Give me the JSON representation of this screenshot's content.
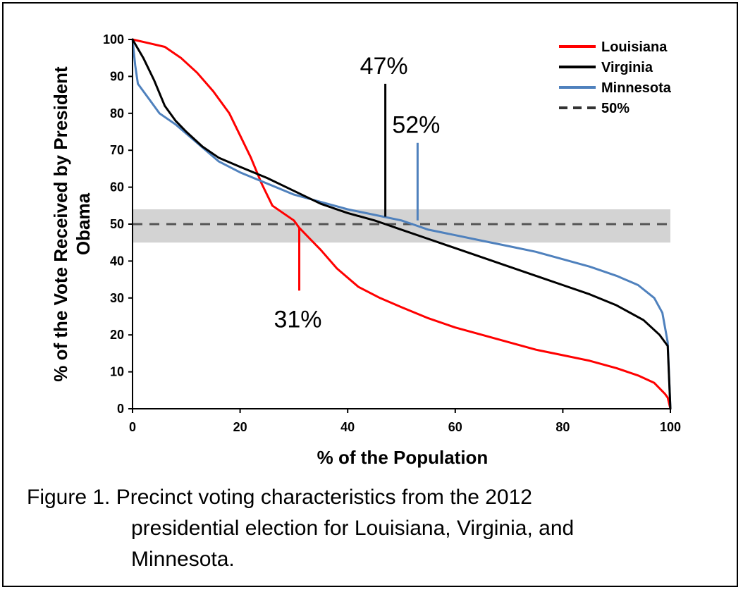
{
  "chart_data": {
    "type": "line",
    "title": "",
    "xlabel": "% of the Population",
    "ylabel": "% of the Vote Received by President Obama",
    "xlim": [
      0,
      100
    ],
    "ylim": [
      0,
      100
    ],
    "xticks": [
      0,
      20,
      40,
      60,
      80,
      100
    ],
    "yticks": [
      0,
      10,
      20,
      30,
      40,
      50,
      60,
      70,
      80,
      90,
      100
    ],
    "grid": false,
    "legend_position": "top-right",
    "band": {
      "ymin": 45,
      "ymax": 54,
      "color": "#d3d3d3"
    },
    "series": [
      {
        "name": "Louisiana",
        "color": "#ff0000",
        "style": "solid",
        "x": [
          0,
          3,
          6,
          9,
          12,
          15,
          18,
          20,
          22,
          24,
          26,
          28,
          30,
          31,
          33,
          35,
          38,
          42,
          46,
          50,
          55,
          60,
          65,
          70,
          75,
          80,
          85,
          90,
          94,
          97,
          99,
          99.5,
          100
        ],
        "y": [
          100,
          99,
          98,
          95,
          91,
          86,
          80,
          74,
          68,
          61,
          55,
          53,
          51,
          49,
          46,
          43,
          38,
          33,
          30,
          27.5,
          24.5,
          22,
          20,
          18,
          16,
          14.5,
          13,
          11,
          9,
          7,
          4,
          3,
          0
        ]
      },
      {
        "name": "Virginia",
        "color": "#000000",
        "style": "solid",
        "x": [
          0,
          2,
          4,
          6,
          8,
          10,
          13,
          16,
          20,
          25,
          30,
          35,
          40,
          45,
          47,
          50,
          55,
          60,
          65,
          70,
          75,
          80,
          85,
          90,
          95,
          98,
          99.5,
          100
        ],
        "y": [
          100,
          95,
          89,
          82,
          78,
          75,
          71,
          68,
          65.5,
          62.5,
          59,
          55.5,
          53,
          51,
          50,
          48.5,
          46,
          43.5,
          41,
          38.5,
          36,
          33.5,
          31,
          28,
          24,
          20,
          17,
          0
        ]
      },
      {
        "name": "Minnesota",
        "color": "#4f81bd",
        "style": "solid",
        "x": [
          0,
          0.5,
          1,
          3,
          5,
          8,
          12,
          16,
          20,
          25,
          30,
          35,
          40,
          45,
          50,
          52,
          55,
          60,
          65,
          70,
          75,
          80,
          85,
          90,
          94,
          97,
          98.5,
          99.5,
          100
        ],
        "y": [
          100,
          93,
          88,
          84,
          80,
          77,
          72,
          67,
          64,
          61,
          58,
          56,
          54,
          52.5,
          51,
          50,
          48.5,
          47,
          45.5,
          44,
          42.5,
          40.5,
          38.5,
          36,
          33.5,
          30,
          26,
          18,
          0
        ]
      },
      {
        "name": "50%",
        "color": "#555555",
        "style": "dashed",
        "x": [
          0,
          100
        ],
        "y": [
          50,
          50
        ]
      }
    ],
    "annotations": [
      {
        "label": "47%",
        "x": 47,
        "y_from": 52,
        "y_to": 88,
        "color": "#000000",
        "text_position": "above"
      },
      {
        "label": "52%",
        "x": 53,
        "y_from": 51,
        "y_to": 72,
        "color": "#4f81bd",
        "text_position": "above"
      },
      {
        "label": "31%",
        "x": 31,
        "y_from": 32,
        "y_to": 49,
        "color": "#ff0000",
        "text_position": "below"
      }
    ]
  },
  "caption": {
    "line1": "Figure 1. Precinct voting characteristics from the 2012",
    "line2": "presidential election for Louisiana, Virginia, and",
    "line3": "Minnesota."
  }
}
